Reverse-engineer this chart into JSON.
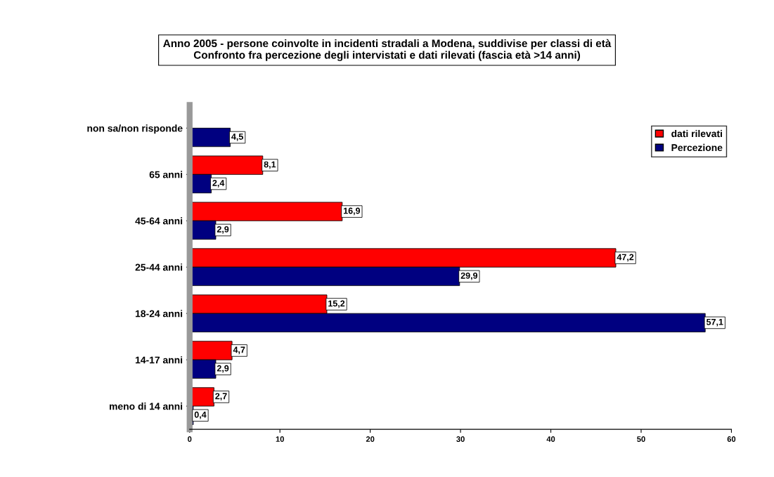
{
  "chart_data": {
    "type": "bar",
    "orientation": "horizontal",
    "title": "Anno 2005 - persone coinvolte in incidenti stradali a Modena, suddivise per classi di età\nConfronto fra percezione degli intervistati e dati rilevati (fascia età >14 anni)",
    "categories": [
      "non sa/non risponde",
      "65 anni",
      "45-64 anni",
      "25-44 anni",
      "18-24 anni",
      "14-17 anni",
      "meno di 14 anni"
    ],
    "series": [
      {
        "name": "dati rilevati",
        "color": "#ff0000",
        "values": [
          null,
          8.1,
          16.9,
          47.2,
          15.2,
          4.7,
          2.7
        ],
        "value_labels": [
          null,
          "8,1",
          "16,9",
          "47,2",
          "15,2",
          "4,7",
          "2,7"
        ]
      },
      {
        "name": "Percezione",
        "color": "#000080",
        "values": [
          4.5,
          2.4,
          2.9,
          29.9,
          57.1,
          2.9,
          0.4
        ],
        "value_labels": [
          "4,5",
          "2,4",
          "2,9",
          "29,9",
          "57,1",
          "2,9",
          "0,4"
        ]
      }
    ],
    "xlim": [
      0,
      60
    ],
    "xticks": [
      0,
      10,
      20,
      30,
      40,
      50,
      60
    ],
    "legend": "top right",
    "grid": false
  }
}
